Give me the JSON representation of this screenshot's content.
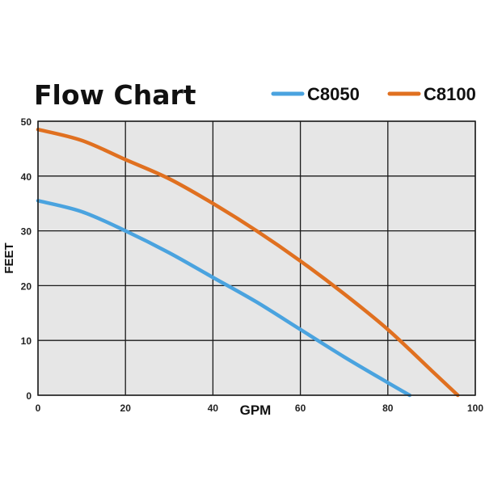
{
  "chart_data": {
    "type": "line",
    "title": "Flow Chart",
    "xlabel": "GPM",
    "ylabel": "FEET",
    "xlim": [
      0,
      100
    ],
    "ylim": [
      0,
      50
    ],
    "x_ticks": [
      "0",
      "20",
      "40",
      "60",
      "80",
      "100"
    ],
    "y_ticks": [
      "0",
      "10",
      "20",
      "30",
      "40",
      "50"
    ],
    "grid": true,
    "legend_position": "top-right",
    "plot_background": "#e6e6e6",
    "grid_color": "#1a1a1a",
    "series": [
      {
        "name": "C8050",
        "color": "#4aa3df",
        "points": [
          [
            0,
            35.5
          ],
          [
            10,
            33.5
          ],
          [
            20,
            30
          ],
          [
            30,
            26
          ],
          [
            40,
            21.5
          ],
          [
            50,
            17
          ],
          [
            60,
            12
          ],
          [
            70,
            7
          ],
          [
            80,
            2.3
          ],
          [
            85,
            0
          ]
        ]
      },
      {
        "name": "C8100",
        "color": "#e07020",
        "points": [
          [
            0,
            48.5
          ],
          [
            10,
            46.5
          ],
          [
            20,
            43
          ],
          [
            30,
            39.5
          ],
          [
            40,
            35
          ],
          [
            50,
            30
          ],
          [
            60,
            24.5
          ],
          [
            70,
            18.5
          ],
          [
            80,
            12
          ],
          [
            90,
            4.5
          ],
          [
            96,
            0
          ]
        ]
      }
    ]
  }
}
